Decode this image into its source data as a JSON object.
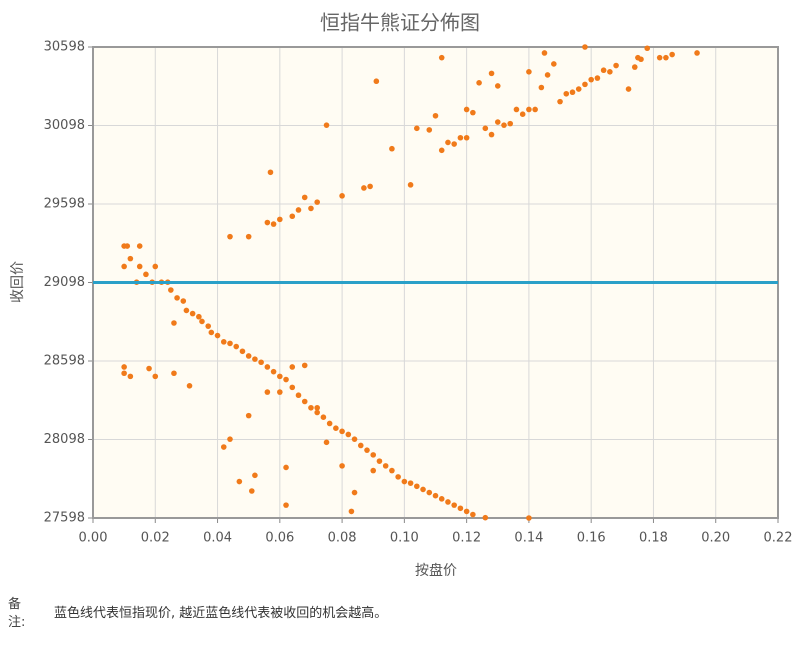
{
  "chart_data": {
    "type": "scatter",
    "title": "恒指牛熊证分佈图",
    "x_label": "按盘价",
    "y_label": "收回价",
    "color": "#f07a1a",
    "reference_line": {
      "value": 29098,
      "color": "#2aa0c8"
    },
    "xlim": [
      0,
      0.22
    ],
    "xticks": [
      {
        "value": 0,
        "label": "0.00"
      },
      {
        "value": 0.02,
        "label": "0.02"
      },
      {
        "value": 0.04,
        "label": "0.04"
      },
      {
        "value": 0.06,
        "label": "0.06"
      },
      {
        "value": 0.08,
        "label": "0.08"
      },
      {
        "value": 0.1,
        "label": "0.10"
      },
      {
        "value": 0.12,
        "label": "0.12"
      },
      {
        "value": 0.14,
        "label": "0.14"
      },
      {
        "value": 0.16,
        "label": "0.16"
      },
      {
        "value": 0.18,
        "label": "0.18"
      },
      {
        "value": 0.2,
        "label": "0.20"
      },
      {
        "value": 0.22,
        "label": "0.22"
      }
    ],
    "ylim": [
      27598,
      30598
    ],
    "yticks": [
      27598,
      28098,
      28598,
      29098,
      29598,
      30098,
      30598
    ],
    "grid": true,
    "x": [
      0.01,
      0.011,
      0.015,
      0.01,
      0.015,
      0.012,
      0.017,
      0.02,
      0.019,
      0.014,
      0.022,
      0.024,
      0.025,
      0.027,
      0.029,
      0.03,
      0.032,
      0.034,
      0.035,
      0.037,
      0.038,
      0.04,
      0.042,
      0.044,
      0.046,
      0.048,
      0.05,
      0.052,
      0.054,
      0.056,
      0.058,
      0.06,
      0.062,
      0.064,
      0.066,
      0.068,
      0.07,
      0.072,
      0.074,
      0.076,
      0.078,
      0.08,
      0.082,
      0.084,
      0.086,
      0.088,
      0.09,
      0.092,
      0.094,
      0.096,
      0.098,
      0.1,
      0.102,
      0.104,
      0.106,
      0.108,
      0.11,
      0.112,
      0.114,
      0.116,
      0.118,
      0.12,
      0.122,
      0.126,
      0.14,
      0.01,
      0.01,
      0.012,
      0.018,
      0.02,
      0.026,
      0.031,
      0.026,
      0.042,
      0.044,
      0.047,
      0.051,
      0.052,
      0.05,
      0.056,
      0.062,
      0.062,
      0.06,
      0.064,
      0.068,
      0.072,
      0.075,
      0.084,
      0.08,
      0.09,
      0.083,
      0.044,
      0.05,
      0.056,
      0.058,
      0.06,
      0.064,
      0.066,
      0.068,
      0.07,
      0.072,
      0.057,
      0.08,
      0.087,
      0.089,
      0.075,
      0.091,
      0.096,
      0.102,
      0.104,
      0.108,
      0.11,
      0.112,
      0.114,
      0.116,
      0.118,
      0.12,
      0.122,
      0.126,
      0.128,
      0.13,
      0.132,
      0.134,
      0.13,
      0.124,
      0.128,
      0.136,
      0.138,
      0.14,
      0.142,
      0.144,
      0.146,
      0.148,
      0.15,
      0.152,
      0.154,
      0.156,
      0.158,
      0.16,
      0.162,
      0.164,
      0.166,
      0.168,
      0.172,
      0.174,
      0.175,
      0.176,
      0.178,
      0.182,
      0.184,
      0.186,
      0.194,
      0.145,
      0.158,
      0.112,
      0.14,
      0.12
    ],
    "values": [
      29330,
      29330,
      29330,
      29200,
      29200,
      29250,
      29150,
      29200,
      29100,
      29100,
      29100,
      29100,
      29050,
      29000,
      28980,
      28920,
      28900,
      28880,
      28850,
      28820,
      28780,
      28760,
      28720,
      28710,
      28690,
      28660,
      28630,
      28610,
      28590,
      28560,
      28530,
      28500,
      28480,
      28430,
      28380,
      28340,
      28300,
      28270,
      28240,
      28200,
      28170,
      28150,
      28130,
      28100,
      28060,
      28030,
      28000,
      27960,
      27930,
      27900,
      27860,
      27830,
      27820,
      27800,
      27780,
      27760,
      27740,
      27720,
      27700,
      27680,
      27660,
      27640,
      27620,
      27600,
      27598,
      28560,
      28520,
      28500,
      28550,
      28500,
      28520,
      28440,
      28840,
      28050,
      28100,
      27830,
      27770,
      27870,
      28250,
      28400,
      27920,
      27680,
      28400,
      28560,
      28570,
      28300,
      28080,
      27760,
      27930,
      27900,
      27640,
      29390,
      29390,
      29480,
      29470,
      29500,
      29520,
      29560,
      29640,
      29570,
      29610,
      29800,
      29650,
      29700,
      29710,
      30100,
      30380,
      29950,
      29720,
      30080,
      30070,
      30160,
      29940,
      29990,
      29980,
      30020,
      30020,
      30180,
      30080,
      30040,
      30120,
      30100,
      30110,
      30350,
      30370,
      30430,
      30200,
      30170,
      30200,
      30200,
      30340,
      30420,
      30490,
      30250,
      30300,
      30310,
      30330,
      30360,
      30390,
      30400,
      30450,
      30440,
      30480,
      30330,
      30470,
      30530,
      30520,
      30590,
      30530,
      30530,
      30550,
      30560,
      30560,
      30598,
      30530,
      30440,
      30200
    ]
  },
  "note": {
    "label": "备注:",
    "text": "蓝色线代表恒指现价, 越近蓝色线代表被收回的机会越高。"
  }
}
